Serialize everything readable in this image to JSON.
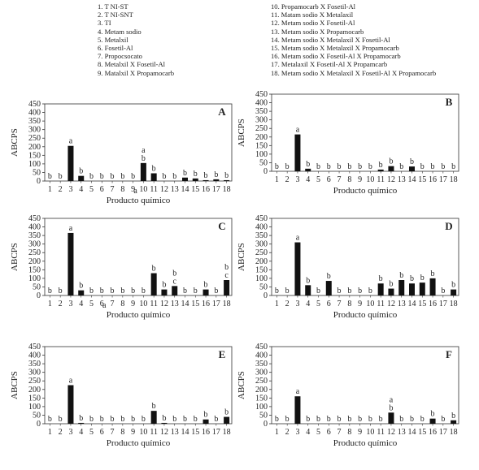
{
  "legend": {
    "left": [
      "1. T NI-ST",
      "2. T NI-SNT",
      "3. TI",
      "4. Metam sodio",
      "5. Metalxil",
      "6. Fosetil-Al",
      "7. Propocsocato",
      "8. Metalxil X Fosetil-Al",
      "9. Matalxil X Propamocarb"
    ],
    "right": [
      "10. Propamocarb X Fosetil-Al",
      "11. Matam sodio X Metalaxil",
      "12. Metam sodio X Fosetil-Al",
      "13. Metam sodio X Propamocarb",
      "14. Metam sodio X Metalaxil X Fosetil-Al",
      "15. Metam sodio X Metalaxil X Propamocarb",
      "16. Metam sodio X Fosetil-Al X Propamocarb",
      "17. Metalaxil X Fosetil-Al X Propamcarb",
      "18. Metam sodio X Metalaxil X Fosetil-Al X Propamocarb"
    ]
  },
  "chart_data": [
    {
      "type": "bar",
      "panel": "A",
      "ylabel": "ABCPS",
      "xlabel": "Producto químico",
      "ylim": [
        0,
        450
      ],
      "yticks": [
        0,
        50,
        100,
        150,
        200,
        250,
        300,
        350,
        400,
        450
      ],
      "categories": [
        "1",
        "2",
        "3",
        "4",
        "5",
        "6",
        "7",
        "8",
        "9",
        "10",
        "11",
        "12",
        "13",
        "14",
        "15",
        "16",
        "17",
        "18"
      ],
      "values": [
        0,
        0,
        205,
        30,
        0,
        0,
        0,
        0,
        0,
        105,
        45,
        0,
        0,
        20,
        15,
        5,
        10,
        5
      ],
      "letters": [
        "b",
        "b",
        "a",
        "b",
        "b",
        "b",
        "b",
        "b",
        "b",
        "ab",
        "b",
        "b",
        "b",
        "b",
        "b",
        "b",
        "b",
        "b"
      ],
      "extra_labels": [
        {
          "category": "9",
          "text": "a"
        }
      ]
    },
    {
      "type": "bar",
      "panel": "B",
      "ylabel": "ABCPS",
      "xlabel": "Producto químico",
      "ylim": [
        0,
        450
      ],
      "yticks": [
        0,
        50,
        100,
        150,
        200,
        250,
        300,
        350,
        400,
        450
      ],
      "categories": [
        "1",
        "2",
        "3",
        "4",
        "5",
        "6",
        "7",
        "8",
        "9",
        "10",
        "11",
        "12",
        "13",
        "14",
        "15",
        "16",
        "17",
        "18"
      ],
      "values": [
        0,
        0,
        215,
        15,
        0,
        0,
        0,
        0,
        0,
        0,
        10,
        30,
        0,
        28,
        0,
        0,
        0,
        0
      ],
      "letters": [
        "b",
        "b",
        "a",
        "b",
        "b",
        "b",
        "b",
        "b",
        "b",
        "b",
        "b",
        "b",
        "b",
        "b",
        "b",
        "b",
        "b",
        "b"
      ]
    },
    {
      "type": "bar",
      "panel": "C",
      "ylabel": "ABCPS",
      "xlabel": "Producto químico",
      "ylim": [
        0,
        450
      ],
      "yticks": [
        0,
        50,
        100,
        150,
        200,
        250,
        300,
        350,
        400,
        450
      ],
      "categories": [
        "1",
        "2",
        "3",
        "4",
        "5",
        "6",
        "7",
        "8",
        "9",
        "10",
        "11",
        "12",
        "13",
        "14",
        "15",
        "16",
        "17",
        "18"
      ],
      "values": [
        0,
        0,
        365,
        30,
        0,
        0,
        0,
        0,
        0,
        0,
        130,
        35,
        55,
        0,
        0,
        35,
        0,
        90
      ],
      "letters": [
        "b",
        "b",
        "a",
        "b",
        "b",
        "b",
        "b",
        "b",
        "b",
        "b",
        "b",
        "b",
        "bc",
        "b",
        "b",
        "b",
        "b",
        "bc"
      ],
      "extra_labels": [
        {
          "category": "6",
          "text": "a"
        }
      ]
    },
    {
      "type": "bar",
      "panel": "D",
      "ylabel": "ABCPS",
      "xlabel": "Producto químico",
      "ylim": [
        0,
        450
      ],
      "yticks": [
        0,
        50,
        100,
        150,
        200,
        250,
        300,
        350,
        400,
        450
      ],
      "categories": [
        "1",
        "2",
        "3",
        "4",
        "5",
        "6",
        "7",
        "8",
        "9",
        "10",
        "11",
        "12",
        "13",
        "14",
        "15",
        "16",
        "17",
        "18"
      ],
      "values": [
        0,
        0,
        310,
        60,
        0,
        85,
        0,
        0,
        0,
        0,
        70,
        40,
        90,
        70,
        75,
        100,
        0,
        35
      ],
      "letters": [
        "b",
        "b",
        "a",
        "b",
        "b",
        "b",
        "b",
        "b",
        "b",
        "b",
        "b",
        "b",
        "b",
        "b",
        "b",
        "b",
        "b",
        "b"
      ]
    },
    {
      "type": "bar",
      "panel": "E",
      "ylabel": "ABCPS",
      "xlabel": "Producto químico",
      "ylim": [
        0,
        450
      ],
      "yticks": [
        0,
        50,
        100,
        150,
        200,
        250,
        300,
        350,
        400,
        450
      ],
      "categories": [
        "1",
        "2",
        "3",
        "4",
        "5",
        "6",
        "7",
        "8",
        "9",
        "10",
        "11",
        "12",
        "13",
        "14",
        "15",
        "16",
        "17",
        "18"
      ],
      "values": [
        0,
        0,
        225,
        5,
        0,
        0,
        0,
        0,
        0,
        0,
        75,
        5,
        0,
        0,
        0,
        25,
        0,
        40
      ],
      "letters": [
        "b",
        "b",
        "a",
        "b",
        "b",
        "b",
        "b",
        "b",
        "b",
        "b",
        "b",
        "b",
        "b",
        "b",
        "b",
        "b",
        "b",
        "b"
      ]
    },
    {
      "type": "bar",
      "panel": "F",
      "ylabel": "ABCPS",
      "xlabel": "Producto químico",
      "ylim": [
        0,
        450
      ],
      "yticks": [
        0,
        50,
        100,
        150,
        200,
        250,
        300,
        350,
        400,
        450
      ],
      "categories": [
        "1",
        "2",
        "3",
        "4",
        "5",
        "6",
        "7",
        "8",
        "9",
        "10",
        "11",
        "12",
        "13",
        "14",
        "15",
        "16",
        "17",
        "18"
      ],
      "values": [
        0,
        0,
        160,
        0,
        0,
        0,
        0,
        0,
        0,
        0,
        0,
        65,
        0,
        0,
        0,
        30,
        0,
        20
      ],
      "letters": [
        "b",
        "b",
        "a",
        "b",
        "b",
        "b",
        "b",
        "b",
        "b",
        "b",
        "b",
        "ab",
        "b",
        "b",
        "b",
        "b",
        "b",
        "b"
      ]
    }
  ]
}
